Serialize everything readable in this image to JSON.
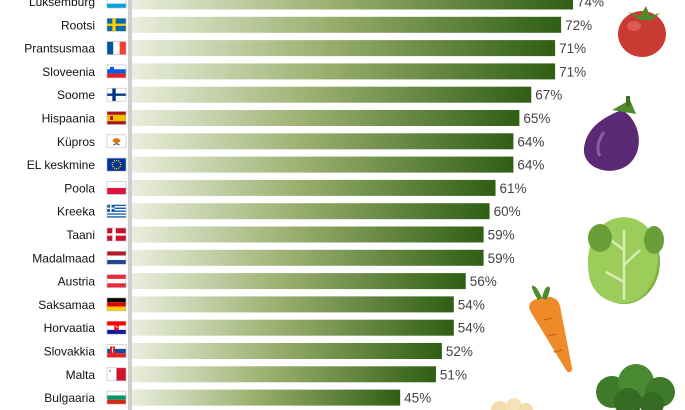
{
  "chart_data": {
    "type": "bar",
    "orientation": "horizontal",
    "categories": [
      "Luksemburg",
      "Rootsi",
      "Prantsusmaa",
      "Sloveenia",
      "Soome",
      "Hispaania",
      "Küpros",
      "EL keskmine",
      "Poola",
      "Kreeka",
      "Taani",
      "Madalmaad",
      "Austria",
      "Saksamaa",
      "Horvaatia",
      "Slovakkia",
      "Malta",
      "Bulgaaria"
    ],
    "values": [
      74,
      72,
      71,
      71,
      67,
      65,
      64,
      64,
      61,
      60,
      59,
      59,
      56,
      54,
      54,
      52,
      51,
      45
    ],
    "value_labels": [
      "74%",
      "72%",
      "71%",
      "71%",
      "67%",
      "65%",
      "64%",
      "64%",
      "61%",
      "60%",
      "59%",
      "59%",
      "56%",
      "54%",
      "54%",
      "52%",
      "51%",
      "45%"
    ],
    "flags": [
      "luxembourg-flag",
      "sweden-flag",
      "france-flag",
      "slovenia-flag",
      "finland-flag",
      "spain-flag",
      "cyprus-flag",
      "eu-flag",
      "poland-flag",
      "greece-flag",
      "denmark-flag",
      "netherlands-flag",
      "austria-flag",
      "germany-flag",
      "croatia-flag",
      "slovakia-flag",
      "malta-flag",
      "bulgaria-flag"
    ],
    "title": "",
    "xlabel": "",
    "ylabel": "",
    "grid": false,
    "legend": "none",
    "bar_gradient": [
      "#eaeedd",
      "#2f5e14"
    ],
    "decorations": [
      "tomato-icon",
      "eggplant-icon",
      "lettuce-icon",
      "carrot-icon",
      "broccoli-icon"
    ]
  }
}
